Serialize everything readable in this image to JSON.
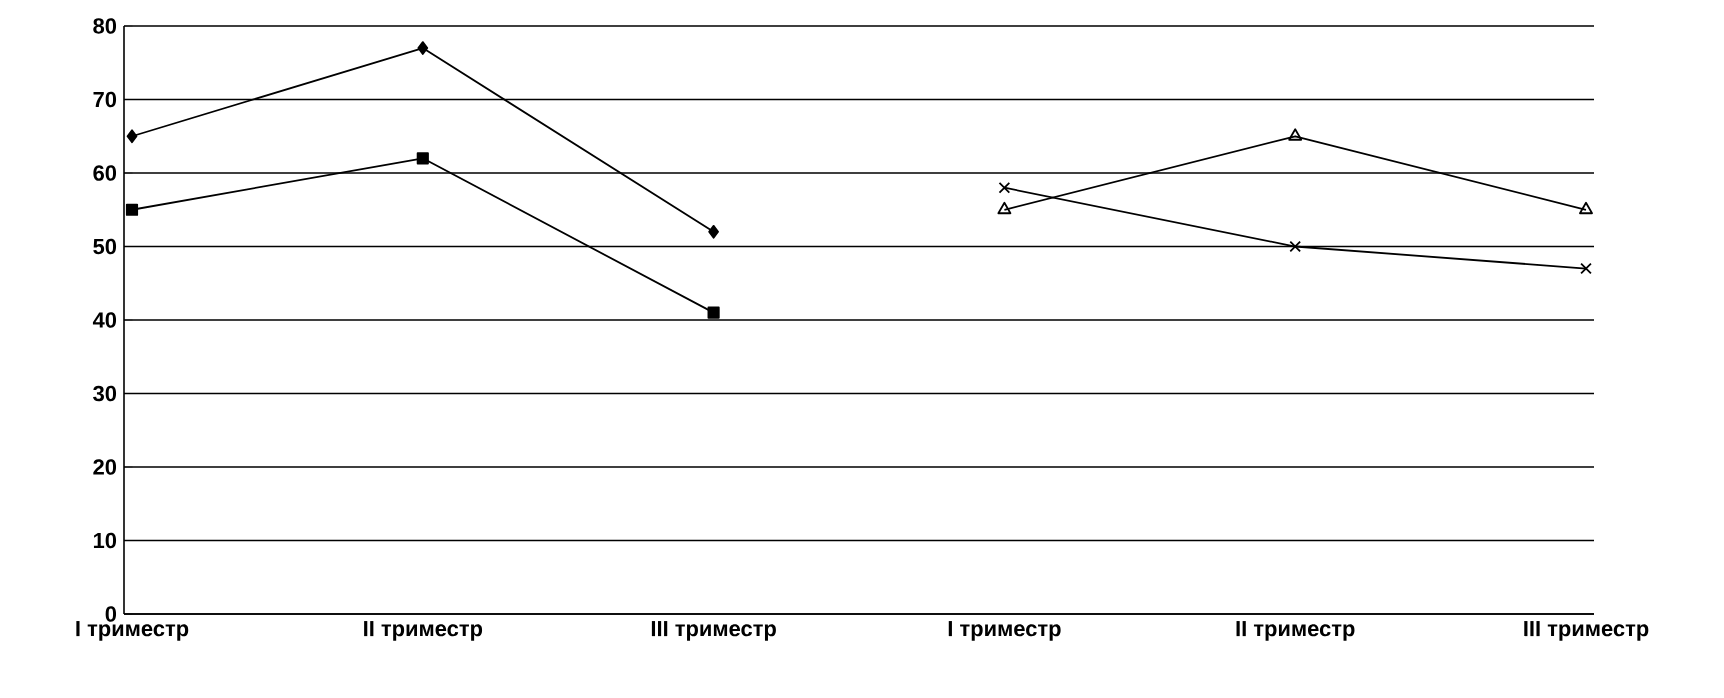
{
  "chart_data": {
    "type": "line",
    "categories": [
      "I триместр",
      "II триместр",
      "III триместр",
      "I триместр",
      "II триместр",
      "III триместр"
    ],
    "series": [
      {
        "color": "#000000",
        "marker": "diamond",
        "values": [
          65,
          77,
          52,
          null,
          null,
          null
        ]
      },
      {
        "color": "#000000",
        "marker": "square",
        "values": [
          55,
          62,
          41,
          null,
          null,
          null
        ]
      },
      {
        "color": "#000000",
        "marker": "cross",
        "values": [
          null,
          null,
          null,
          58,
          50,
          47
        ]
      },
      {
        "color": "#000000",
        "marker": "triangle",
        "values": [
          null,
          null,
          null,
          55,
          65,
          55
        ]
      }
    ],
    "ylim": [
      0,
      80
    ],
    "yticks": [
      0,
      10,
      20,
      30,
      40,
      50,
      60,
      70,
      80
    ],
    "grid": "y"
  }
}
